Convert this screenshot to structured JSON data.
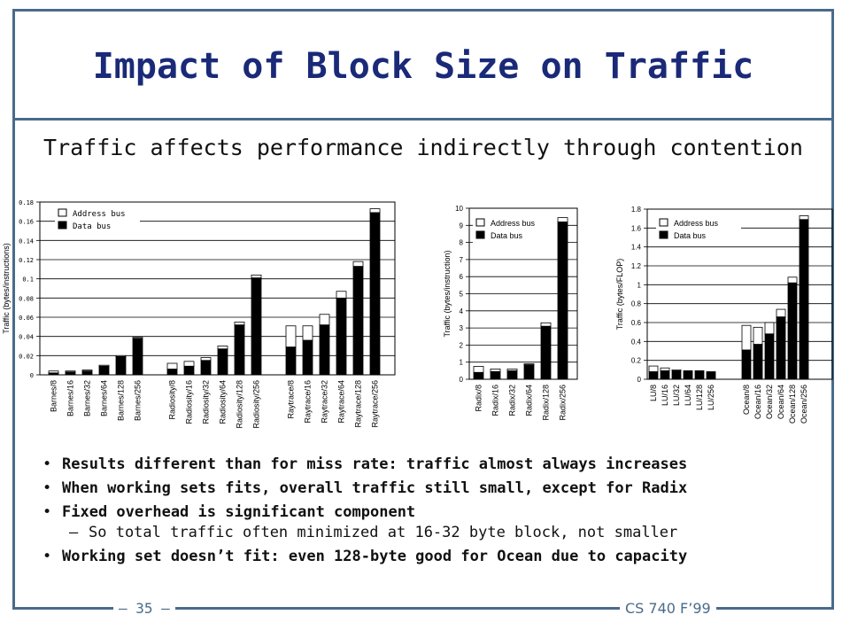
{
  "slide": {
    "title": "Impact of Block Size on Traffic",
    "subtitle": "Traffic affects performance indirectly through contention",
    "bullets": [
      {
        "text": "Results different than for miss rate: traffic almost always increases"
      },
      {
        "text": "When working sets fits, overall traffic still small, except for Radix"
      },
      {
        "text": "Fixed overhead is significant component",
        "sub": "So total traffic often minimized at 16-32 byte block, not smaller"
      },
      {
        "text": "Working set doesn’t fit: even 128-byte good for Ocean due to capacity"
      }
    ],
    "footer_left": "– 35 –",
    "footer_right": "CS 740 F’99"
  },
  "chart_data": [
    {
      "type": "bar",
      "stacked": true,
      "ylabel": "Traffic (bytes/instructions)",
      "ylim": [
        0,
        0.18
      ],
      "yticks": [
        "0",
        "0.02",
        "0.04",
        "0.06",
        "0.08",
        "0.1",
        "0.12",
        "0.14",
        "0.16",
        "0.18"
      ],
      "legend": [
        "Address bus",
        "Data bus"
      ],
      "legend_position": "top-left",
      "groups": [
        {
          "categories": [
            "Barnes/8",
            "Barnes/16",
            "Barnes/32",
            "Barnes/64",
            "Barnes/128",
            "Barnes/256"
          ],
          "data": [
            0.002,
            0.003,
            0.004,
            0.009,
            0.019,
            0.038
          ],
          "address": [
            0.002,
            0.001,
            0.001,
            0.001,
            0.001,
            0.001
          ]
        },
        {
          "categories": [
            "Radiosity/8",
            "Radiosity/16",
            "Radiosity/32",
            "Radiosity/64",
            "Radiosity/128",
            "Radiosity/256"
          ],
          "data": [
            0.006,
            0.009,
            0.015,
            0.027,
            0.052,
            0.101
          ],
          "address": [
            0.006,
            0.005,
            0.003,
            0.003,
            0.003,
            0.003
          ]
        },
        {
          "categories": [
            "Raytrace/8",
            "Raytrace/16",
            "Raytrace/32",
            "Raytrace/64",
            "Raytrace/128",
            "Raytrace/256"
          ],
          "data": [
            0.029,
            0.036,
            0.052,
            0.08,
            0.113,
            0.169
          ],
          "address": [
            0.022,
            0.015,
            0.011,
            0.007,
            0.005,
            0.004
          ]
        }
      ]
    },
    {
      "type": "bar",
      "stacked": true,
      "ylabel": "Traffic (bytes/instruction)",
      "ylim": [
        0,
        10
      ],
      "yticks": [
        "0",
        "1",
        "2",
        "3",
        "4",
        "5",
        "6",
        "7",
        "8",
        "9",
        "10"
      ],
      "legend": [
        "Address bus",
        "Data bus"
      ],
      "legend_position": "top-left",
      "groups": [
        {
          "categories": [
            "Radix/8",
            "Radix/16",
            "Radix/32",
            "Radix/64",
            "Radix/128",
            "Radix/256"
          ],
          "data": [
            0.4,
            0.45,
            0.5,
            0.85,
            3.1,
            9.2
          ],
          "address": [
            0.35,
            0.15,
            0.1,
            0.05,
            0.2,
            0.25
          ]
        }
      ]
    },
    {
      "type": "bar",
      "stacked": true,
      "ylabel": "Traffic (bytes/FLOP)",
      "ylim": [
        0,
        1.8
      ],
      "yticks": [
        "0",
        "0.2",
        "0.4",
        "0.6",
        "0.8",
        "1",
        "1.2",
        "1.4",
        "1.6",
        "1.8"
      ],
      "legend": [
        "Address bus",
        "Data bus"
      ],
      "legend_position": "top-left",
      "groups": [
        {
          "categories": [
            "LU/8",
            "LU/16",
            "LU/32",
            "LU/64",
            "LU/128",
            "LU/256"
          ],
          "data": [
            0.08,
            0.09,
            0.09,
            0.09,
            0.09,
            0.08
          ],
          "address": [
            0.06,
            0.03,
            0.01,
            0.0,
            0.0,
            0.0
          ]
        },
        {
          "categories": [
            "Ocean/8",
            "Ocean/16",
            "Ocean/32",
            "Ocean/64",
            "Ocean/128",
            "Ocean/256"
          ],
          "data": [
            0.31,
            0.37,
            0.48,
            0.66,
            1.02,
            1.69
          ],
          "address": [
            0.26,
            0.18,
            0.12,
            0.08,
            0.06,
            0.04
          ]
        }
      ]
    }
  ]
}
